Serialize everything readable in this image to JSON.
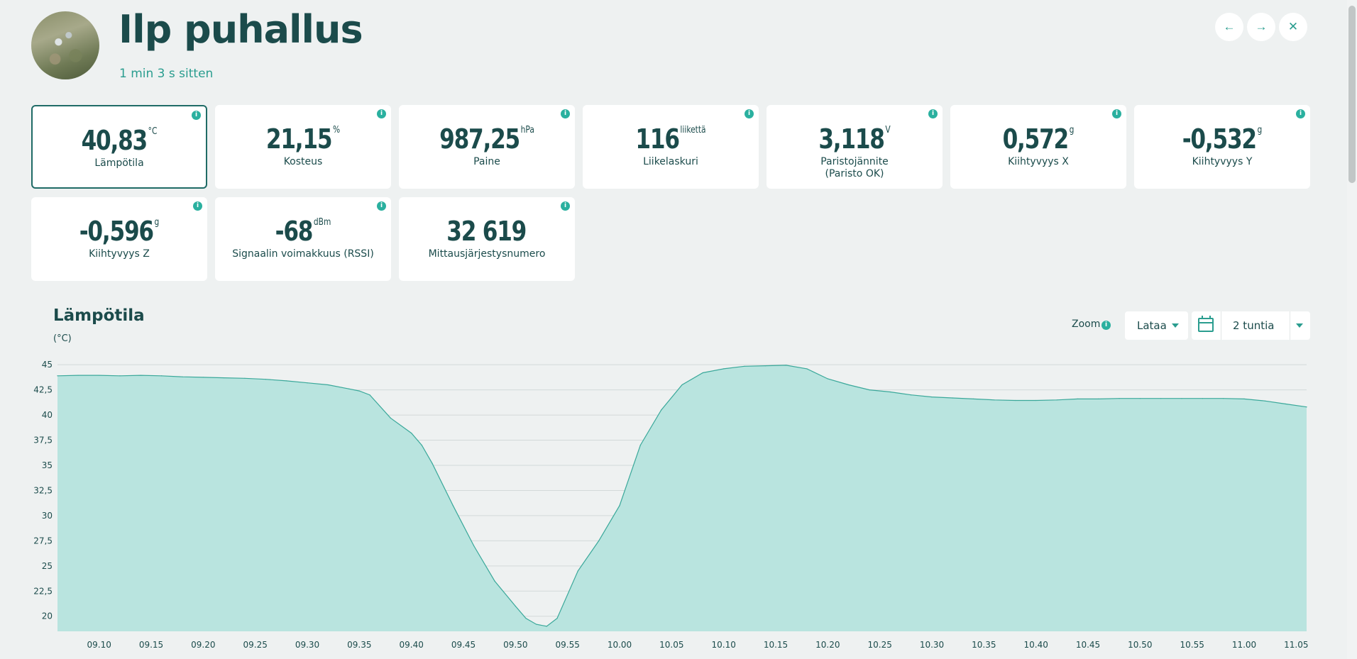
{
  "header": {
    "title": "Ilp puhallus",
    "subtitle": "1 min 3 s sitten",
    "nav": {
      "prev": "←",
      "next": "→",
      "close": "✕"
    }
  },
  "info_glyph": "i",
  "cards": [
    {
      "value": "40,83",
      "unit": "°C",
      "label": "Lämpötila",
      "selected": true
    },
    {
      "value": "21,15",
      "unit": "%",
      "label": "Kosteus"
    },
    {
      "value": "987,25",
      "unit": "hPa",
      "label": "Paine"
    },
    {
      "value": "116",
      "unit": "liikettä",
      "label": "Liikelaskuri"
    },
    {
      "value": "3,118",
      "unit": "V",
      "label": "Paristojännite",
      "label2": "(Paristo OK)"
    },
    {
      "value": "0,572",
      "unit": "g",
      "label": "Kiihtyvyys X"
    },
    {
      "value": "-0,532",
      "unit": "g",
      "label": "Kiihtyvyys Y"
    },
    {
      "value": "-0,596",
      "unit": "g",
      "label": "Kiihtyvyys Z"
    },
    {
      "value": "-68",
      "unit": "dBm",
      "label": "Signaalin voimakkuus (RSSI)"
    },
    {
      "value": "32 619",
      "unit": "",
      "label": "Mittausjärjestysnumero"
    }
  ],
  "chart_section": {
    "title": "Lämpötila",
    "unit": "(°C)",
    "zoom_label": "Zoom",
    "download_label": "Lataa",
    "range_label": "2 tuntia"
  },
  "colors": {
    "accent": "#2a9d8f",
    "area_fill": "#b9e4df",
    "area_line": "#3aa89a",
    "dark": "#1b4b4b"
  },
  "chart_data": {
    "type": "area",
    "title": "Lämpötila",
    "ylabel": "(°C)",
    "ylim": [
      18.5,
      46
    ],
    "yticks": [
      "45",
      "42,5",
      "40",
      "37,5",
      "35",
      "32,5",
      "30",
      "27,5",
      "25",
      "22,5",
      "20"
    ],
    "xticks": [
      "09.10",
      "09.15",
      "09.20",
      "09.25",
      "09.30",
      "09.35",
      "09.40",
      "09.45",
      "09.50",
      "09.55",
      "10.00",
      "10.05",
      "10.10",
      "10.15",
      "10.20",
      "10.25",
      "10.30",
      "10.35",
      "10.40",
      "10.45",
      "10.50",
      "10.55",
      "11.00",
      "11.05"
    ],
    "xlim": [
      "09.06",
      "11.06"
    ],
    "grid": true,
    "series": [
      {
        "x": [
          "09.06",
          "09.08",
          "09.10",
          "09.12",
          "09.14",
          "09.16",
          "09.18",
          "09.20",
          "09.22",
          "09.24",
          "09.26",
          "09.28",
          "09.30",
          "09.32",
          "09.34",
          "09.35",
          "09.36",
          "09.38",
          "09.40",
          "09.41",
          "09.42",
          "09.44",
          "09.46",
          "09.48",
          "09.50",
          "09.51",
          "09.52",
          "09.53",
          "09.54",
          "09.56",
          "09.58",
          "10.00",
          "10.02",
          "10.04",
          "10.06",
          "10.08",
          "10.10",
          "10.12",
          "10.14",
          "10.16",
          "10.18",
          "10.20",
          "10.22",
          "10.24",
          "10.26",
          "10.28",
          "10.30",
          "10.32",
          "10.34",
          "10.36",
          "10.38",
          "10.40",
          "10.42",
          "10.44",
          "10.46",
          "10.48",
          "10.50",
          "10.52",
          "10.54",
          "10.56",
          "10.58",
          "11.00",
          "11.02",
          "11.04",
          "11.06"
        ],
        "values": [
          43.9,
          43.95,
          43.95,
          43.9,
          43.95,
          43.9,
          43.8,
          43.75,
          43.7,
          43.65,
          43.55,
          43.4,
          43.2,
          43.0,
          42.6,
          42.4,
          42.0,
          39.7,
          38.2,
          37.0,
          35.2,
          31.0,
          27.0,
          23.5,
          21.0,
          19.8,
          19.2,
          19.0,
          19.8,
          24.5,
          27.5,
          31.0,
          37.0,
          40.5,
          43.0,
          44.2,
          44.6,
          44.85,
          44.9,
          44.95,
          44.6,
          43.6,
          43.0,
          42.5,
          42.3,
          42.0,
          41.8,
          41.7,
          41.6,
          41.5,
          41.45,
          41.45,
          41.5,
          41.6,
          41.6,
          41.65,
          41.65,
          41.65,
          41.65,
          41.65,
          41.65,
          41.6,
          41.4,
          41.1,
          40.8
        ]
      }
    ]
  }
}
